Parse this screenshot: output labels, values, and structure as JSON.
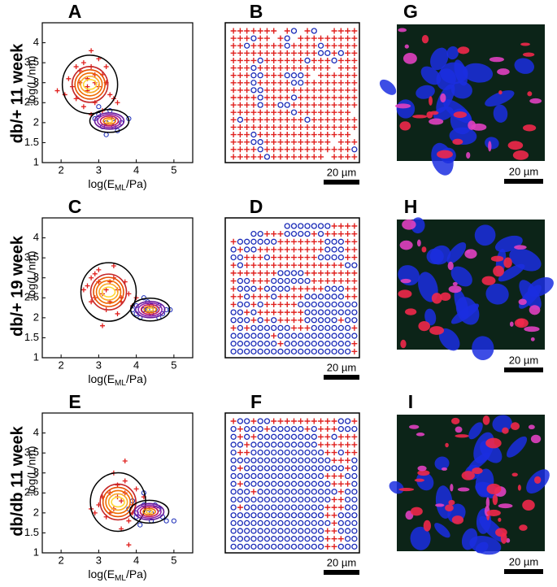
{
  "row_labels": [
    "db/+ 11 week",
    "db/+ 19 week",
    "db/db 11 week"
  ],
  "chart_data": [
    {
      "type": "scatter",
      "letter": "A",
      "xlabel": [
        "log(E",
        "ML",
        "/Pa)"
      ],
      "ylabel": "log(L/nm)",
      "xlim": [
        1.5,
        5.5
      ],
      "ylim": [
        1,
        4.5
      ],
      "xticks": [
        2,
        3,
        4,
        5
      ],
      "yticks": [
        1,
        1.5,
        2,
        2.5,
        3,
        3.5,
        4
      ],
      "series": [
        {
          "marker": "+",
          "color": "#e0201e",
          "x": [
            2.2,
            2.5,
            2.7,
            2.9,
            3.1,
            3.3,
            2.4,
            2.6,
            2.8,
            3.0,
            3.2,
            2.3,
            2.7,
            2.9,
            3.4,
            2.1,
            2.6,
            3.0,
            2.8,
            3.5,
            2.5,
            2.9,
            3.1,
            2.7,
            1.9,
            3.2,
            2.8,
            2.4
          ],
          "values": [
            3.1,
            3.3,
            2.8,
            3.0,
            3.2,
            2.7,
            2.6,
            3.5,
            3.4,
            2.9,
            3.0,
            2.9,
            3.1,
            2.5,
            2.6,
            2.7,
            2.4,
            3.6,
            3.8,
            2.5,
            3.0,
            3.2,
            2.3,
            2.9,
            2.8,
            3.4,
            2.2,
            3.4
          ]
        },
        {
          "marker": "o",
          "color": "#1a2bb8",
          "x": [
            3.0,
            3.2,
            3.4,
            3.1,
            3.3,
            3.6,
            2.9,
            3.5,
            3.2,
            3.8,
            3.0,
            3.4
          ],
          "values": [
            2.2,
            2.0,
            2.1,
            1.9,
            2.3,
            2.0,
            2.1,
            1.8,
            1.7,
            2.1,
            2.4,
            1.9
          ]
        }
      ]
    },
    {
      "type": "scatter",
      "letter": "C",
      "xlabel": [
        "log(E",
        "ML",
        "/Pa)"
      ],
      "ylabel": "log(L/nm)",
      "xlim": [
        1.5,
        5.5
      ],
      "ylim": [
        1,
        4.5
      ],
      "xticks": [
        2,
        3,
        4,
        5
      ],
      "yticks": [
        1,
        1.5,
        2,
        2.5,
        3,
        3.5,
        4
      ],
      "series": [
        {
          "marker": "+",
          "color": "#e0201e",
          "x": [
            2.7,
            2.9,
            3.1,
            3.3,
            3.5,
            2.8,
            3.0,
            3.2,
            3.4,
            3.6,
            3.8,
            2.6,
            3.1,
            3.3,
            3.7,
            3.9,
            2.9,
            3.5,
            3.0,
            3.4,
            4.0,
            3.2,
            2.8,
            3.6
          ],
          "values": [
            2.8,
            3.1,
            2.6,
            2.9,
            2.7,
            2.4,
            3.2,
            2.2,
            3.0,
            2.5,
            2.6,
            2.7,
            1.8,
            2.4,
            2.9,
            2.3,
            2.5,
            2.1,
            2.9,
            3.3,
            2.5,
            2.7,
            3.0,
            2.4
          ]
        },
        {
          "marker": "o",
          "color": "#1a2bb8",
          "x": [
            4.0,
            4.2,
            4.4,
            4.6,
            4.8,
            4.1,
            4.3,
            4.5,
            4.7,
            3.9,
            4.2,
            4.4,
            4.9,
            4.6,
            4.0,
            4.3
          ],
          "values": [
            2.3,
            2.2,
            2.1,
            2.3,
            2.2,
            2.0,
            2.4,
            2.2,
            2.1,
            2.2,
            2.5,
            2.3,
            2.2,
            2.0,
            2.1,
            2.2
          ]
        }
      ]
    },
    {
      "type": "scatter",
      "letter": "E",
      "xlabel": [
        "log(E",
        "ML",
        "/Pa)"
      ],
      "ylabel": "log(L/nm)",
      "xlim": [
        1.5,
        5.5
      ],
      "ylim": [
        1,
        4.5
      ],
      "xticks": [
        2,
        3,
        4,
        5
      ],
      "yticks": [
        1,
        1.5,
        2,
        2.5,
        3,
        3.5,
        4
      ],
      "series": [
        {
          "marker": "+",
          "color": "#e0201e",
          "x": [
            2.8,
            3.1,
            3.3,
            3.5,
            3.7,
            3.9,
            3.4,
            3.6,
            3.8,
            4.0,
            3.2,
            3.5,
            3.7,
            3.0,
            3.6,
            3.9,
            4.2,
            3.3,
            3.8,
            3.4,
            2.9,
            3.7
          ],
          "values": [
            2.1,
            2.4,
            2.0,
            2.7,
            2.5,
            2.2,
            3.0,
            2.3,
            1.8,
            2.6,
            1.9,
            2.4,
            3.3,
            2.2,
            1.6,
            2.0,
            2.4,
            2.5,
            1.2,
            2.1,
            2.0,
            2.8
          ]
        },
        {
          "marker": "o",
          "color": "#1a2bb8",
          "x": [
            3.8,
            4.0,
            4.2,
            4.4,
            4.6,
            4.8,
            3.9,
            4.1,
            4.3,
            4.5,
            4.7,
            5.0,
            4.2,
            4.4,
            4.0,
            4.6
          ],
          "values": [
            2.1,
            1.9,
            2.2,
            2.0,
            2.1,
            1.8,
            2.3,
            1.7,
            2.1,
            2.2,
            1.9,
            1.8,
            2.5,
            1.8,
            2.0,
            2.1
          ]
        }
      ]
    }
  ],
  "maps": [
    {
      "letter": "B",
      "scale_bar": "20 µm",
      "rows": [
        "+++++++.+o.+o..++++",
        "+++o++.+o.+++++++++",
        "++o+++++o++++o+++++",
        "+++++++++++++oo+o++",
        "++++o++++++o+++o+++",
        "+++o+++++++++++.+++",
        "+++oo+++ooo+.++++++",
        "+++o+++++oo++++++++",
        "+++oo++++++++++++++",
        "++++o++++o+++++++++",
        "++++o++oo++++++++++",
        "+++++++++o++++++++.",
        "+o+++++++++o+++++++",
        "+++++++++++++++++++",
        "+++o++++++++++++++.",
        "+++oo++++++++++.+++",
        "++++o+++++++++++++o",
        "+++++o++++++++.++++"
      ]
    },
    {
      "letter": "D",
      "scale_bar": "20 µm",
      "rows": [
        "........ooooooo++++",
        "...oo+++oooo+o+++++",
        "+oooooo+++++++ooo++",
        "o+oo++++++++++ooo++",
        "oo+++o+++++++oooo++",
        "+o+++++++++++++++oo",
        "+++++++oooo++++++++",
        "+oo+++oooooo+++++++",
        "+ooo+oooo+++++ooo++",
        "++o+++o++++oooooo++",
        "+oo+o+++++ooooooooo",
        "oo+o+++++++oooooooo",
        "ooo+o+o++++ooooo+oo",
        "+o+oooooo+++oooooo+",
        "oooooo+oooooooooooo",
        "ooooooo+oooooooooo+",
        "oooooooooooooooooo+"
      ]
    },
    {
      "letter": "F",
      "scale_bar": "20 µm",
      "rows": [
        "+oo+oo++++++++++oo+",
        "o+ooo+ooooo+o+++ooo",
        "o+o+ooooooooo++o+++",
        "oo+oooooooooo++++++",
        "o++ooooooooooo++o++",
        "ooooooooooooooo+++o",
        "o+ooooooooooooooo+o",
        "oooooooooooooo+++oo",
        "o+ooooooooooooo+++o",
        "ooo+oooooooooooo+oo",
        "ooooooooooooooo++oo",
        "o+oooooooooooo+++oo",
        "oooooooooooooo++ooo",
        "ooooooooooooooo+ooo",
        "oooooooooooooo++ooo",
        "oooooooooooooo+++oo",
        "oooooooooooooo++ooo"
      ]
    }
  ],
  "images": [
    {
      "letter": "G",
      "scale_bar": "20 µm"
    },
    {
      "letter": "H",
      "scale_bar": "20 µm"
    },
    {
      "letter": "I",
      "scale_bar": "20 µm"
    }
  ]
}
